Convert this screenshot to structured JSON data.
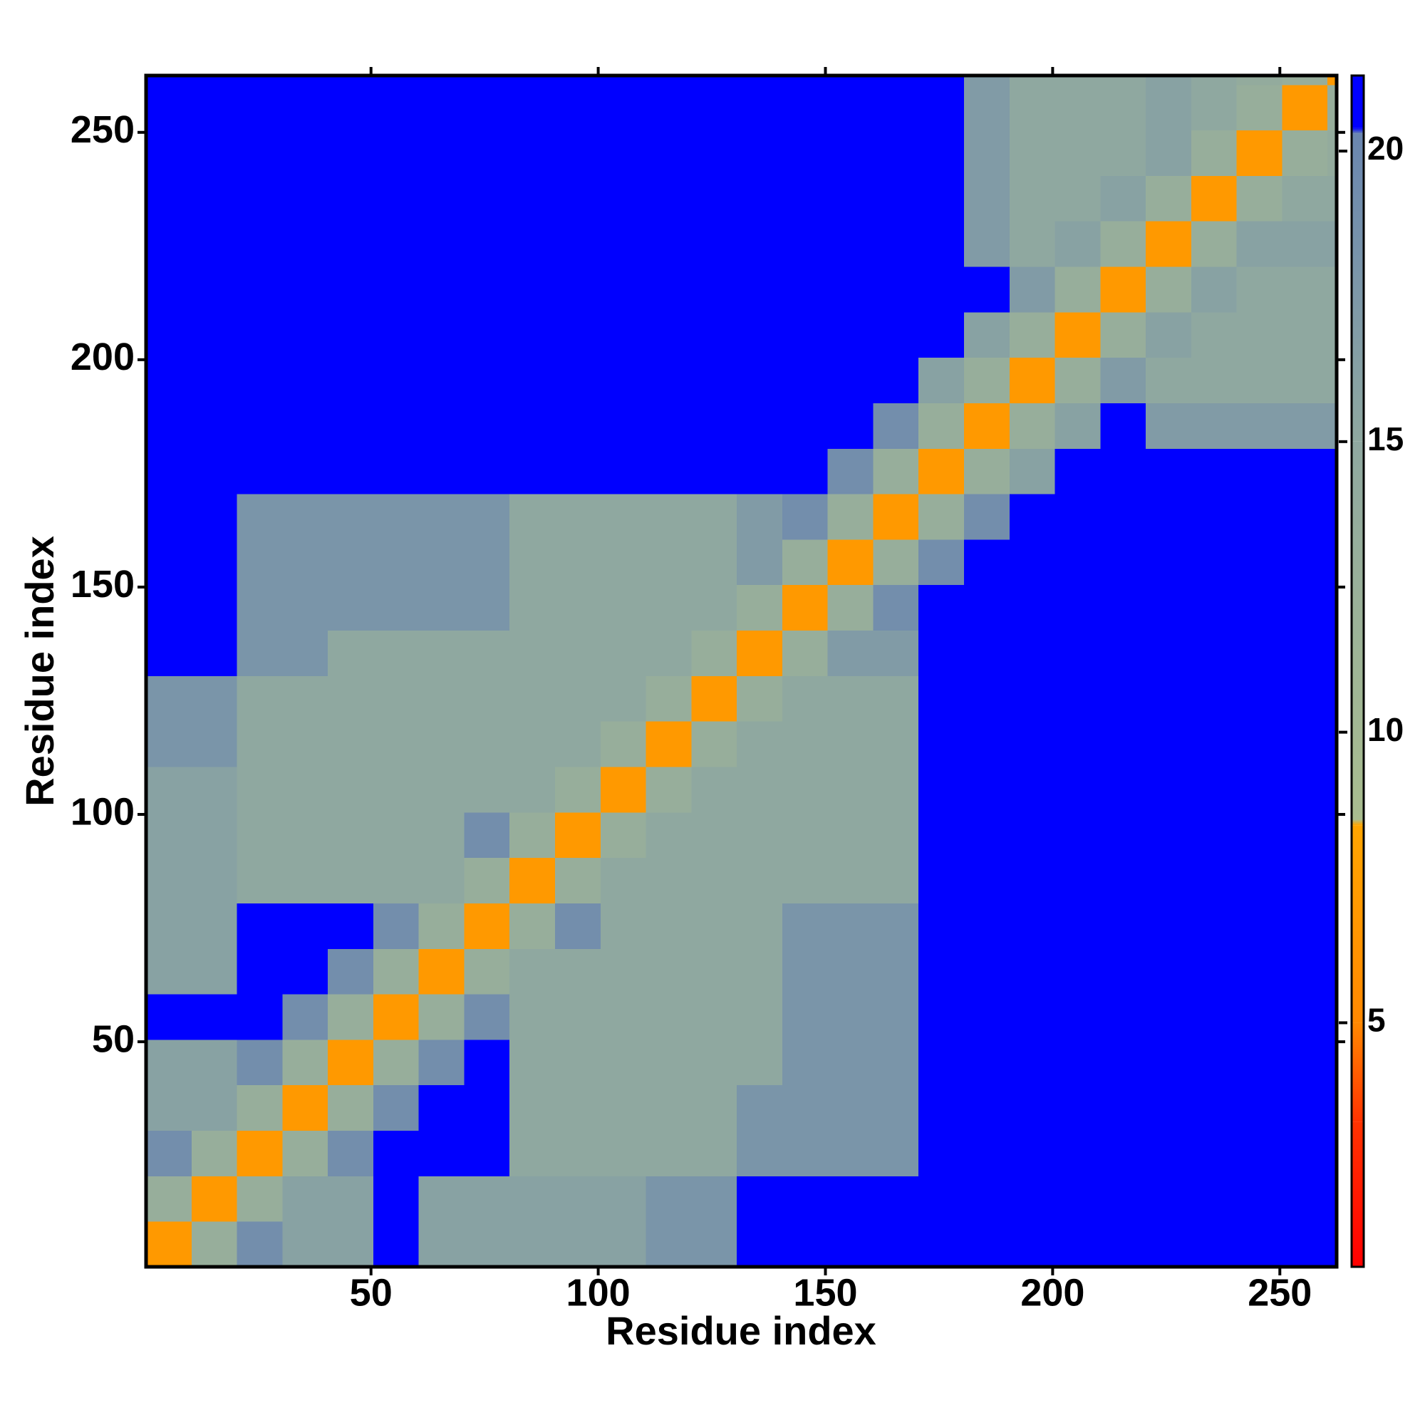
{
  "chart_data": {
    "type": "heatmap",
    "xlabel": "Residue index",
    "ylabel": "Residue index",
    "xlim": [
      0.5,
      262.5
    ],
    "ylim": [
      0.5,
      262.5
    ],
    "xticks": [
      50,
      100,
      150,
      200,
      250
    ],
    "yticks": [
      50,
      100,
      150,
      200,
      250
    ],
    "zlim": [
      0.8,
      21.3
    ],
    "zticks": [
      5,
      10,
      15,
      20
    ],
    "colorscale": [
      {
        "value": 0.8,
        "color": "#ff0000"
      },
      {
        "value": 3.3,
        "color": "#ff3300"
      },
      {
        "value": 5,
        "color": "#ff8800"
      },
      {
        "value": 8.4,
        "color": "#ffa500"
      },
      {
        "value": 8.5,
        "color": "#a9bd8f"
      },
      {
        "value": 15,
        "color": "#8fa8a0"
      },
      {
        "value": 20.3,
        "color": "#6a86b0"
      },
      {
        "value": 20.4,
        "color": "#0000ff"
      },
      {
        "value": 21.3,
        "color": "#0000ff"
      }
    ],
    "xbins": [
      0.5,
      10.5,
      20.5,
      30.5,
      40.5,
      50.5,
      60.5,
      70.5,
      80.5,
      90.5,
      100.5,
      110.5,
      120.5,
      130.5,
      140.5,
      150.5,
      160.5,
      170.5,
      180.5,
      190.5,
      200.5,
      210.5,
      220.5,
      230.5,
      240.5,
      250.5,
      260.5,
      262.5
    ],
    "ybins": [
      0.5,
      10.5,
      20.5,
      30.5,
      40.5,
      50.5,
      60.5,
      70.5,
      80.5,
      90.5,
      100.5,
      110.5,
      120.5,
      130.5,
      140.5,
      150.5,
      160.5,
      170.5,
      180.5,
      190.5,
      200.5,
      210.5,
      220.5,
      230.5,
      240.5,
      250.5,
      260.5,
      262.5
    ],
    "z": [
      [
        7,
        13,
        19,
        16,
        16,
        21,
        16,
        16,
        16,
        16,
        16,
        18,
        18,
        21,
        21,
        21,
        21,
        21,
        21,
        21,
        21,
        21,
        21,
        21,
        21,
        21,
        21
      ],
      [
        13,
        7,
        13,
        16,
        16,
        21,
        16,
        16,
        16,
        16,
        16,
        18,
        18,
        21,
        21,
        21,
        21,
        21,
        21,
        21,
        21,
        21,
        21,
        21,
        21,
        21,
        21
      ],
      [
        19,
        13,
        7,
        13,
        19,
        21,
        21,
        21,
        15,
        15,
        15,
        15,
        15,
        18,
        18,
        18,
        18,
        21,
        21,
        21,
        21,
        21,
        21,
        21,
        21,
        21,
        21
      ],
      [
        16,
        16,
        13,
        7,
        13,
        19,
        21,
        21,
        15,
        15,
        15,
        15,
        15,
        18,
        18,
        18,
        18,
        21,
        21,
        21,
        21,
        21,
        21,
        21,
        21,
        21,
        21
      ],
      [
        16,
        16,
        19,
        13,
        7,
        13,
        19,
        21,
        15,
        15,
        15,
        15,
        15,
        15,
        18,
        18,
        18,
        21,
        21,
        21,
        21,
        21,
        21,
        21,
        21,
        21,
        21
      ],
      [
        21,
        21,
        21,
        19,
        13,
        7,
        13,
        19,
        15,
        15,
        15,
        15,
        15,
        15,
        18,
        18,
        18,
        21,
        21,
        21,
        21,
        21,
        21,
        21,
        21,
        21,
        21
      ],
      [
        16,
        16,
        21,
        21,
        19,
        13,
        7,
        13,
        15,
        15,
        15,
        15,
        15,
        15,
        18,
        18,
        18,
        21,
        21,
        21,
        21,
        21,
        21,
        21,
        21,
        21,
        21
      ],
      [
        16,
        16,
        21,
        21,
        21,
        19,
        13,
        7,
        13,
        19,
        15,
        15,
        15,
        15,
        18,
        18,
        18,
        21,
        21,
        21,
        21,
        21,
        21,
        21,
        21,
        21,
        21
      ],
      [
        16,
        16,
        15,
        15,
        15,
        15,
        15,
        13,
        7,
        13,
        15,
        15,
        15,
        15,
        15,
        15,
        15,
        21,
        21,
        21,
        21,
        21,
        21,
        21,
        21,
        21,
        21
      ],
      [
        16,
        16,
        15,
        15,
        15,
        15,
        15,
        19,
        13,
        7,
        13,
        15,
        15,
        15,
        15,
        15,
        15,
        21,
        21,
        21,
        21,
        21,
        21,
        21,
        21,
        21,
        21
      ],
      [
        16,
        16,
        15,
        15,
        15,
        15,
        15,
        15,
        15,
        13,
        7,
        13,
        15,
        15,
        15,
        15,
        15,
        21,
        21,
        21,
        21,
        21,
        21,
        21,
        21,
        21,
        21
      ],
      [
        18,
        18,
        15,
        15,
        15,
        15,
        15,
        15,
        15,
        15,
        13,
        7,
        13,
        15,
        15,
        15,
        15,
        21,
        21,
        21,
        21,
        21,
        21,
        21,
        21,
        21,
        21
      ],
      [
        18,
        18,
        15,
        15,
        15,
        15,
        15,
        15,
        15,
        15,
        15,
        13,
        7,
        13,
        15,
        15,
        15,
        21,
        21,
        21,
        21,
        21,
        21,
        21,
        21,
        21,
        21
      ],
      [
        21,
        21,
        18,
        18,
        15,
        15,
        15,
        15,
        15,
        15,
        15,
        15,
        13,
        7,
        13,
        17,
        17,
        21,
        21,
        21,
        21,
        21,
        21,
        21,
        21,
        21,
        21
      ],
      [
        21,
        21,
        18,
        18,
        18,
        18,
        18,
        18,
        15,
        15,
        15,
        15,
        15,
        13,
        7,
        13,
        19,
        21,
        21,
        21,
        21,
        21,
        21,
        21,
        21,
        21,
        21
      ],
      [
        21,
        21,
        18,
        18,
        18,
        18,
        18,
        18,
        15,
        15,
        15,
        15,
        15,
        17,
        13,
        7,
        13,
        19,
        21,
        21,
        21,
        21,
        21,
        21,
        21,
        21,
        21
      ],
      [
        21,
        21,
        18,
        18,
        18,
        18,
        18,
        18,
        15,
        15,
        15,
        15,
        15,
        17,
        19,
        13,
        7,
        13,
        19,
        21,
        21,
        21,
        21,
        21,
        21,
        21,
        21
      ],
      [
        21,
        21,
        21,
        21,
        21,
        21,
        21,
        21,
        21,
        21,
        21,
        21,
        21,
        21,
        21,
        19,
        13,
        7,
        13,
        16,
        21,
        21,
        21,
        21,
        21,
        21,
        21
      ],
      [
        21,
        21,
        21,
        21,
        21,
        21,
        21,
        21,
        21,
        21,
        21,
        21,
        21,
        21,
        21,
        21,
        19,
        13,
        7,
        13,
        16,
        21,
        17,
        17,
        17,
        17,
        17
      ],
      [
        21,
        21,
        21,
        21,
        21,
        21,
        21,
        21,
        21,
        21,
        21,
        21,
        21,
        21,
        21,
        21,
        21,
        16,
        13,
        7,
        13,
        17,
        15,
        15,
        15,
        15,
        15
      ],
      [
        21,
        21,
        21,
        21,
        21,
        21,
        21,
        21,
        21,
        21,
        21,
        21,
        21,
        21,
        21,
        21,
        21,
        21,
        16,
        13,
        7,
        13,
        16,
        15,
        15,
        15,
        15
      ],
      [
        21,
        21,
        21,
        21,
        21,
        21,
        21,
        21,
        21,
        21,
        21,
        21,
        21,
        21,
        21,
        21,
        21,
        21,
        21,
        17,
        13,
        7,
        13,
        16,
        15,
        15,
        15
      ],
      [
        21,
        21,
        21,
        21,
        21,
        21,
        21,
        21,
        21,
        21,
        21,
        21,
        21,
        21,
        21,
        21,
        21,
        21,
        17,
        15,
        16,
        13,
        7,
        13,
        16,
        16,
        16
      ],
      [
        21,
        21,
        21,
        21,
        21,
        21,
        21,
        21,
        21,
        21,
        21,
        21,
        21,
        21,
        21,
        21,
        21,
        21,
        17,
        15,
        15,
        16,
        13,
        7,
        13,
        15,
        15
      ],
      [
        21,
        21,
        21,
        21,
        21,
        21,
        21,
        21,
        21,
        21,
        21,
        21,
        21,
        21,
        21,
        21,
        21,
        21,
        17,
        15,
        15,
        15,
        16,
        13,
        7,
        13,
        14
      ],
      [
        21,
        21,
        21,
        21,
        21,
        21,
        21,
        21,
        21,
        21,
        21,
        21,
        21,
        21,
        21,
        21,
        21,
        21,
        17,
        15,
        15,
        15,
        16,
        15,
        13,
        7,
        13
      ],
      [
        21,
        21,
        21,
        21,
        21,
        21,
        21,
        21,
        21,
        21,
        21,
        21,
        21,
        21,
        21,
        21,
        21,
        21,
        17,
        15,
        15,
        15,
        16,
        15,
        14,
        13,
        7
      ]
    ]
  }
}
